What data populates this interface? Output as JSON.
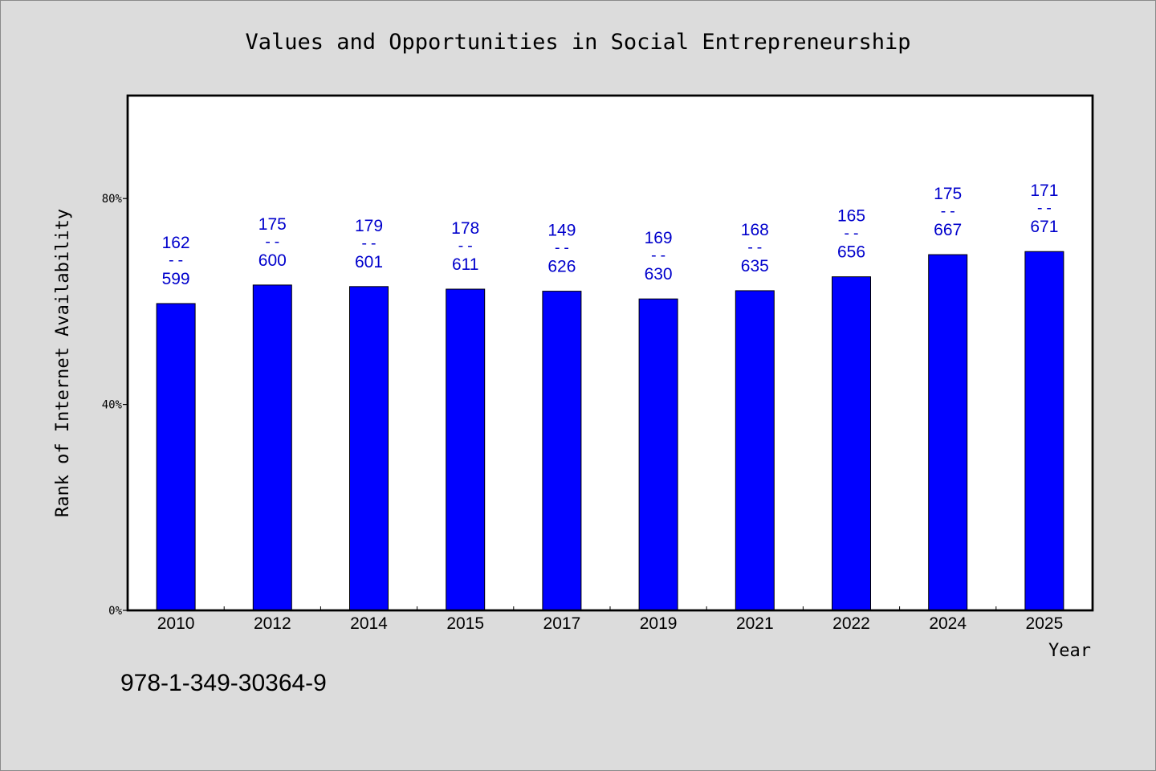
{
  "chart_data": {
    "type": "bar",
    "title": "Values and Opportunities in Social Entrepreneurship",
    "xlabel": "Year",
    "ylabel": "Rank of Internet Availability",
    "categories": [
      "2010",
      "2012",
      "2014",
      "2015",
      "2017",
      "2019",
      "2021",
      "2022",
      "2024",
      "2025"
    ],
    "values": [
      59.6,
      63.2,
      62.9,
      62.4,
      62.0,
      60.5,
      62.1,
      64.8,
      69.1,
      69.7
    ],
    "bar_labels": [
      {
        "top": "162",
        "mid": "--",
        "bottom": "599"
      },
      {
        "top": "175",
        "mid": "--",
        "bottom": "600"
      },
      {
        "top": "179",
        "mid": "--",
        "bottom": "601"
      },
      {
        "top": "178",
        "mid": "--",
        "bottom": "611"
      },
      {
        "top": "149",
        "mid": "--",
        "bottom": "626"
      },
      {
        "top": "169",
        "mid": "--",
        "bottom": "630"
      },
      {
        "top": "168",
        "mid": "--",
        "bottom": "635"
      },
      {
        "top": "165",
        "mid": "--",
        "bottom": "656"
      },
      {
        "top": "175",
        "mid": "--",
        "bottom": "667"
      },
      {
        "top": "171",
        "mid": "--",
        "bottom": "671"
      }
    ],
    "yticks": [
      0,
      40,
      80
    ],
    "ytick_labels": [
      "0%",
      "40%",
      "80%"
    ],
    "ylim": [
      0,
      100
    ],
    "grid": false,
    "colors": {
      "bar": "#0000ff",
      "label": "#0000cc",
      "plot_bg": "#ffffff",
      "page_bg": "#dcdcdc"
    }
  },
  "footer": {
    "isbn": "978-1-349-30364-9"
  }
}
